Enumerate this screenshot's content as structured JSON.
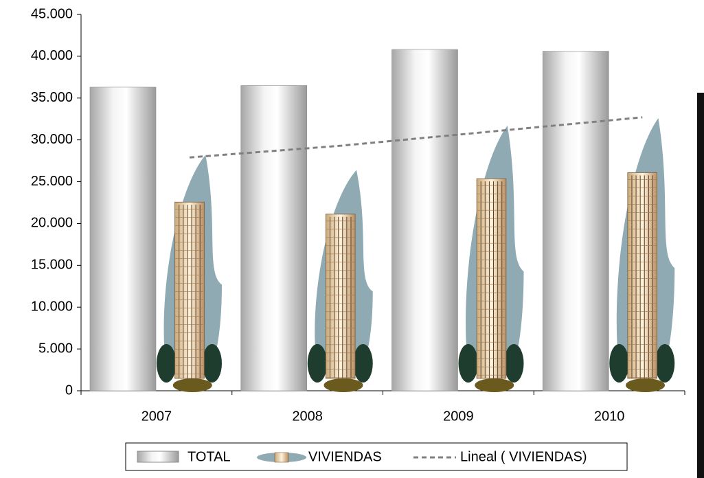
{
  "chart_data": {
    "type": "bar",
    "categories": [
      "2007",
      "2008",
      "2009",
      "2010"
    ],
    "series": [
      {
        "name": "TOTAL",
        "color": "#d9d9d9",
        "values": [
          36300,
          36500,
          40800,
          40600
        ]
      },
      {
        "name": "VIVIENDAS",
        "color": "#8faab3",
        "values": [
          28200,
          26400,
          31700,
          32600
        ]
      },
      {
        "name": "Lineal ( VIVIENDAS)",
        "color": "#808080",
        "type": "line",
        "values": [
          27900,
          29300,
          31000,
          32700
        ]
      }
    ],
    "ylim": [
      0,
      45000
    ],
    "yticks": [
      0,
      {
        "value": 5000,
        "label": "5.000"
      },
      {
        "value": 10000,
        "label": "10.000"
      },
      {
        "value": 15000,
        "label": "15.000"
      },
      {
        "value": 20000,
        "label": "20.000"
      },
      {
        "value": 25000,
        "label": "25.000"
      },
      {
        "value": 30000,
        "label": "30.000"
      },
      {
        "value": 35000,
        "label": "35.000"
      },
      {
        "value": 40000,
        "label": "40.000"
      },
      {
        "value": 45000,
        "label": "45.000"
      }
    ],
    "legend": "bottom"
  }
}
